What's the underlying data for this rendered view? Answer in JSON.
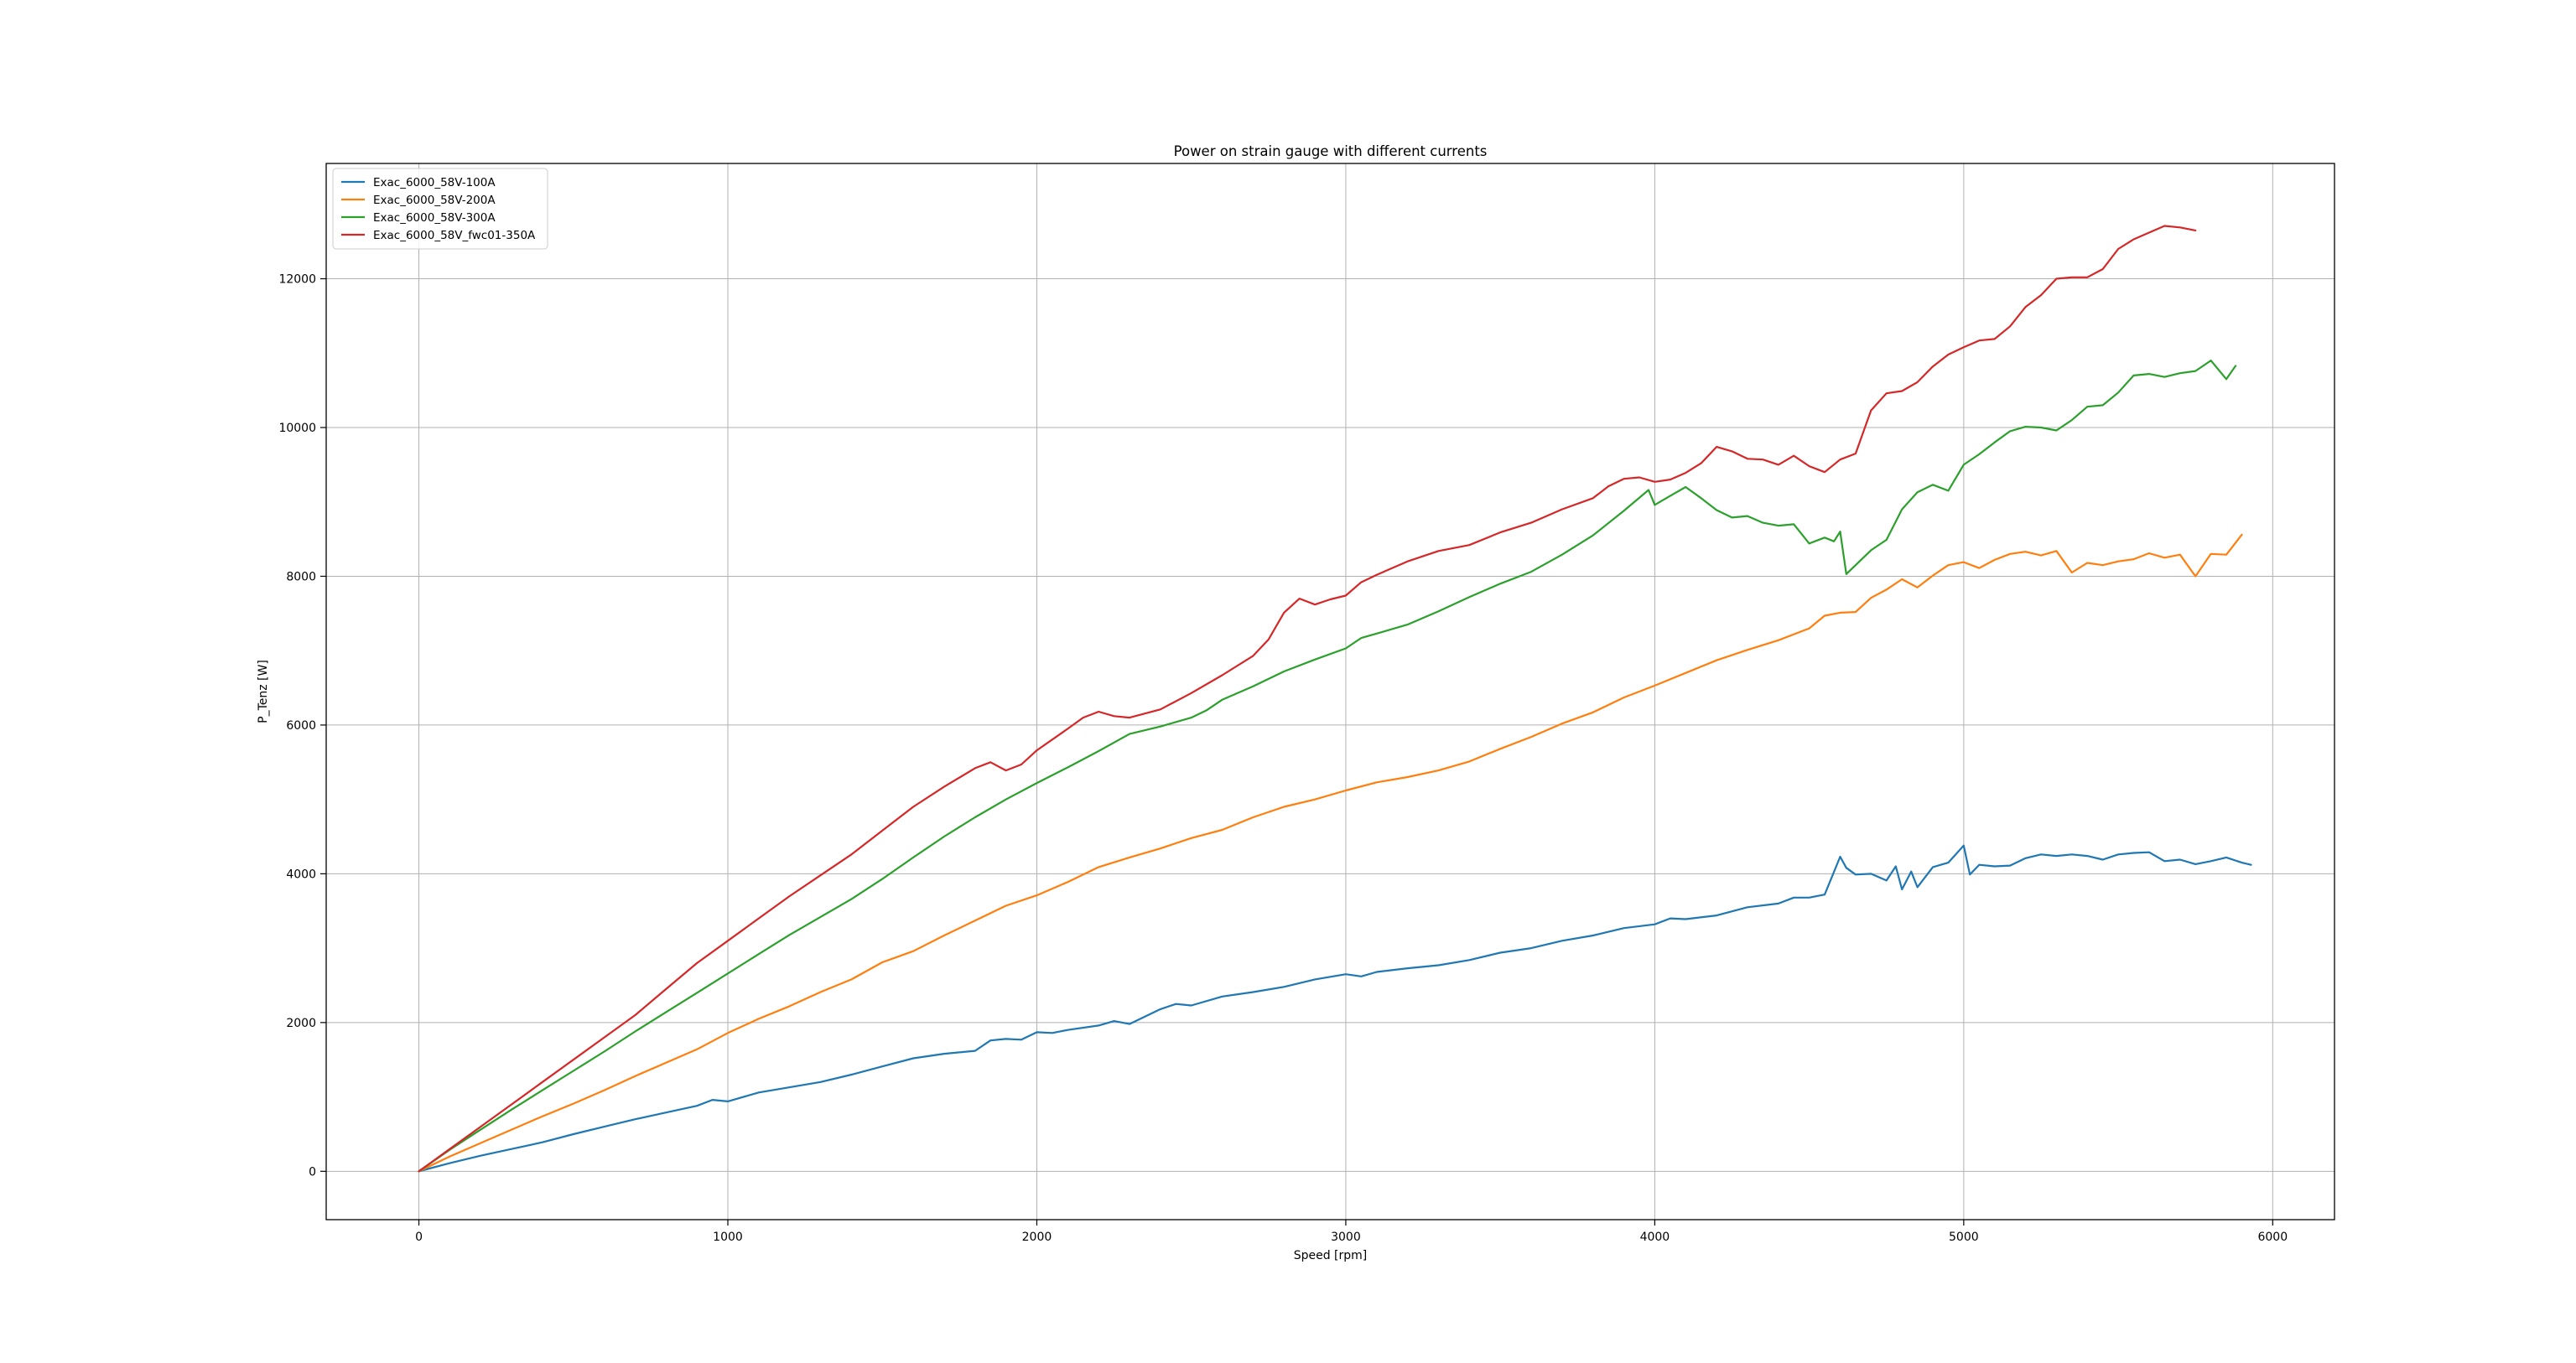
{
  "chart_data": {
    "type": "line",
    "title": "Power on strain gauge with different currents",
    "xlabel": "Speed [rpm]",
    "ylabel": "P_Tenz [W]",
    "xlim": [
      -300,
      6200
    ],
    "ylim": [
      -650,
      13550
    ],
    "xticks": [
      0,
      1000,
      2000,
      3000,
      4000,
      5000,
      6000
    ],
    "yticks": [
      0,
      2000,
      4000,
      6000,
      8000,
      10000,
      12000
    ],
    "grid": true,
    "legend_position": "top-left",
    "series": [
      {
        "name": "Exac_6000_58V-100A",
        "color": "#1f77b4",
        "x": [
          0,
          100,
          200,
          300,
          400,
          500,
          600,
          700,
          800,
          900,
          950,
          1000,
          1100,
          1200,
          1300,
          1400,
          1500,
          1600,
          1700,
          1800,
          1850,
          1900,
          1950,
          2000,
          2050,
          2100,
          2200,
          2250,
          2300,
          2350,
          2400,
          2450,
          2500,
          2600,
          2700,
          2800,
          2900,
          3000,
          3050,
          3100,
          3200,
          3300,
          3400,
          3500,
          3600,
          3700,
          3800,
          3900,
          4000,
          4050,
          4100,
          4200,
          4300,
          4400,
          4450,
          4500,
          4550,
          4600,
          4620,
          4650,
          4700,
          4750,
          4780,
          4800,
          4830,
          4850,
          4900,
          4950,
          5000,
          5020,
          5050,
          5100,
          5150,
          5200,
          5250,
          5300,
          5350,
          5400,
          5450,
          5500,
          5550,
          5600,
          5650,
          5700,
          5750,
          5800,
          5850,
          5900,
          5930
        ],
        "y": [
          0,
          110,
          210,
          300,
          390,
          500,
          600,
          700,
          790,
          880,
          960,
          940,
          1060,
          1130,
          1200,
          1300,
          1410,
          1520,
          1580,
          1620,
          1760,
          1780,
          1770,
          1870,
          1860,
          1900,
          1960,
          2020,
          1980,
          2080,
          2180,
          2250,
          2230,
          2350,
          2410,
          2480,
          2580,
          2650,
          2620,
          2680,
          2730,
          2770,
          2840,
          2940,
          3000,
          3100,
          3170,
          3270,
          3320,
          3400,
          3390,
          3440,
          3550,
          3600,
          3680,
          3680,
          3720,
          4230,
          4080,
          3990,
          4000,
          3910,
          4100,
          3790,
          4030,
          3820,
          4090,
          4150,
          4380,
          3990,
          4120,
          4100,
          4110,
          4210,
          4260,
          4240,
          4260,
          4240,
          4190,
          4260,
          4280,
          4290,
          4170,
          4190,
          4130,
          4170,
          4220,
          4150,
          4120
        ]
      },
      {
        "name": "Exac_6000_58V-200A",
        "color": "#ff7f0e",
        "x": [
          0,
          100,
          200,
          300,
          400,
          500,
          600,
          700,
          800,
          900,
          1000,
          1100,
          1200,
          1300,
          1400,
          1500,
          1600,
          1700,
          1800,
          1900,
          2000,
          2100,
          2200,
          2300,
          2400,
          2500,
          2600,
          2700,
          2800,
          2900,
          3000,
          3100,
          3200,
          3300,
          3400,
          3500,
          3600,
          3700,
          3800,
          3900,
          4000,
          4100,
          4200,
          4300,
          4400,
          4500,
          4550,
          4600,
          4650,
          4700,
          4750,
          4800,
          4850,
          4900,
          4950,
          5000,
          5050,
          5100,
          5150,
          5200,
          5250,
          5300,
          5350,
          5400,
          5450,
          5500,
          5550,
          5600,
          5650,
          5700,
          5750,
          5800,
          5850,
          5900
        ],
        "y": [
          0,
          200,
          380,
          560,
          740,
          910,
          1090,
          1280,
          1460,
          1640,
          1860,
          2050,
          2220,
          2410,
          2580,
          2810,
          2960,
          3170,
          3370,
          3570,
          3710,
          3890,
          4090,
          4220,
          4340,
          4480,
          4590,
          4760,
          4900,
          5000,
          5120,
          5230,
          5300,
          5390,
          5510,
          5680,
          5840,
          6020,
          6170,
          6370,
          6530,
          6700,
          6870,
          7010,
          7140,
          7300,
          7470,
          7510,
          7520,
          7710,
          7820,
          7960,
          7850,
          8010,
          8150,
          8190,
          8110,
          8220,
          8300,
          8330,
          8280,
          8340,
          8050,
          8180,
          8150,
          8200,
          8230,
          8310,
          8250,
          8290,
          8000,
          8300,
          8290,
          8560
        ]
      },
      {
        "name": "Exac_6000_58V-300A",
        "color": "#2ca02c",
        "x": [
          0,
          100,
          200,
          300,
          400,
          500,
          600,
          700,
          800,
          900,
          1000,
          1100,
          1200,
          1300,
          1400,
          1500,
          1600,
          1700,
          1800,
          1900,
          2000,
          2100,
          2200,
          2300,
          2400,
          2500,
          2550,
          2600,
          2700,
          2800,
          2900,
          3000,
          3050,
          3100,
          3200,
          3300,
          3400,
          3500,
          3600,
          3700,
          3800,
          3900,
          3980,
          4000,
          4050,
          4100,
          4150,
          4200,
          4250,
          4300,
          4350,
          4400,
          4450,
          4500,
          4550,
          4580,
          4600,
          4620,
          4650,
          4700,
          4750,
          4800,
          4850,
          4900,
          4950,
          5000,
          5050,
          5100,
          5150,
          5200,
          5250,
          5300,
          5350,
          5400,
          5450,
          5500,
          5550,
          5600,
          5650,
          5700,
          5750,
          5800,
          5850,
          5880
        ],
        "y": [
          0,
          290,
          560,
          830,
          1090,
          1350,
          1610,
          1880,
          2140,
          2400,
          2660,
          2920,
          3180,
          3420,
          3660,
          3930,
          4220,
          4500,
          4760,
          5000,
          5220,
          5430,
          5650,
          5880,
          5980,
          6100,
          6200,
          6340,
          6520,
          6720,
          6880,
          7030,
          7170,
          7230,
          7350,
          7530,
          7720,
          7900,
          8060,
          8290,
          8550,
          8880,
          9160,
          8960,
          9080,
          9200,
          9050,
          8890,
          8790,
          8810,
          8720,
          8680,
          8700,
          8440,
          8520,
          8470,
          8600,
          8030,
          8150,
          8350,
          8490,
          8900,
          9130,
          9230,
          9150,
          9500,
          9640,
          9800,
          9950,
          10010,
          10000,
          9960,
          10100,
          10280,
          10300,
          10470,
          10700,
          10720,
          10680,
          10730,
          10760,
          10900,
          10650,
          10830
        ]
      },
      {
        "name": "Exac_6000_58V_fwc01-350A",
        "color": "#d62728",
        "x": [
          0,
          100,
          200,
          300,
          400,
          500,
          600,
          700,
          800,
          900,
          1000,
          1100,
          1200,
          1300,
          1400,
          1500,
          1600,
          1700,
          1800,
          1850,
          1900,
          1950,
          2000,
          2100,
          2150,
          2200,
          2250,
          2300,
          2400,
          2500,
          2600,
          2700,
          2750,
          2800,
          2850,
          2900,
          2950,
          3000,
          3050,
          3100,
          3200,
          3300,
          3400,
          3500,
          3600,
          3700,
          3800,
          3850,
          3900,
          3950,
          4000,
          4050,
          4100,
          4150,
          4200,
          4250,
          4300,
          4350,
          4400,
          4450,
          4500,
          4550,
          4600,
          4650,
          4700,
          4750,
          4800,
          4850,
          4900,
          4950,
          5000,
          5050,
          5100,
          5150,
          5200,
          5250,
          5300,
          5350,
          5400,
          5450,
          5500,
          5550,
          5600,
          5650,
          5700,
          5750
        ],
        "y": [
          0,
          300,
          600,
          900,
          1200,
          1500,
          1800,
          2100,
          2450,
          2800,
          3100,
          3400,
          3700,
          3980,
          4260,
          4580,
          4900,
          5170,
          5420,
          5500,
          5390,
          5470,
          5660,
          5950,
          6100,
          6180,
          6120,
          6100,
          6210,
          6430,
          6670,
          6930,
          7150,
          7510,
          7700,
          7620,
          7690,
          7740,
          7920,
          8020,
          8200,
          8340,
          8420,
          8590,
          8720,
          8900,
          9050,
          9210,
          9310,
          9330,
          9270,
          9300,
          9390,
          9520,
          9740,
          9680,
          9580,
          9570,
          9500,
          9620,
          9480,
          9400,
          9570,
          9650,
          10230,
          10460,
          10490,
          10610,
          10820,
          10980,
          11080,
          11170,
          11190,
          11360,
          11620,
          11780,
          12000,
          12020,
          12020,
          12130,
          12400,
          12530,
          12620,
          12710,
          12690,
          12650
        ]
      }
    ]
  }
}
